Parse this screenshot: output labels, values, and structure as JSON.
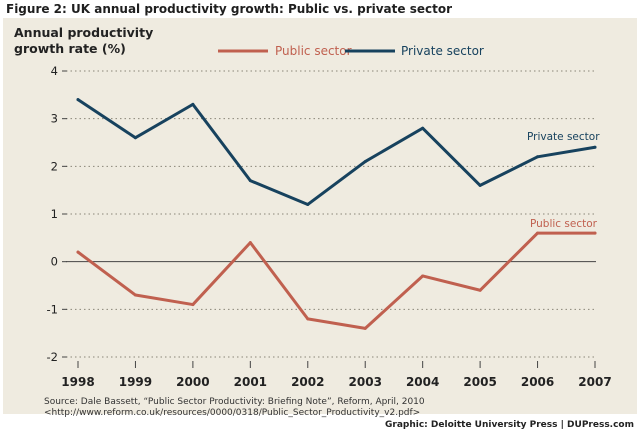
{
  "figure_title": "Figure 2:  UK annual productivity growth: Public vs. private sector",
  "credit": "Graphic: Deloitte University Press | DUPress.com",
  "source_line1": "Source: Dale Bassett, “Public Sector Productivity: Briefing Note”, Reform, April, 2010",
  "source_line2": "<http://www.reform.co.uk/resources/0000/0318/Public_Sector_Productivity_v2.pdf>",
  "colors": {
    "public": "#c0604f",
    "private": "#17425e",
    "background": "#efebe0"
  },
  "chart_data": {
    "type": "line",
    "title": "UK annual productivity growth: Public vs. private sector",
    "ylabel_line1": "Annual productivity",
    "ylabel_line2": "growth rate (%)",
    "xlabel": "",
    "x": [
      "1998",
      "1999",
      "2000",
      "2001",
      "2002",
      "2003",
      "2004",
      "2005",
      "2006",
      "2007"
    ],
    "ylim": [
      -2,
      4
    ],
    "yticks": [
      "4",
      "3",
      "2",
      "1",
      "0",
      "-1",
      "-2"
    ],
    "ytick_values": [
      4,
      3,
      2,
      1,
      0,
      -1,
      -2
    ],
    "grid": "dotted horizontal",
    "legend_position": "top",
    "series": [
      {
        "key": "public",
        "name": "Public sector",
        "annotation": "Public sector",
        "values": [
          0.2,
          -0.7,
          -0.9,
          0.4,
          -1.2,
          -1.4,
          -0.3,
          -0.6,
          0.6,
          0.6
        ]
      },
      {
        "key": "private",
        "name": "Private sector",
        "annotation": "Private sector",
        "values": [
          3.4,
          2.6,
          3.3,
          1.7,
          1.2,
          2.1,
          2.8,
          1.6,
          2.2,
          2.4
        ]
      }
    ]
  }
}
